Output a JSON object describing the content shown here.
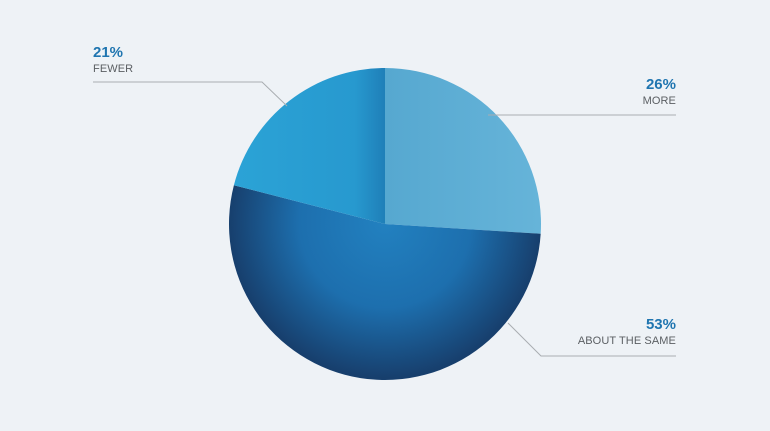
{
  "chart_data": {
    "type": "pie",
    "title": "",
    "legend": "none",
    "slices": [
      {
        "name": "MORE",
        "label": "26%",
        "value": 26,
        "color": "#5fb0d5"
      },
      {
        "name": "ABOUT THE SAME",
        "label": "53%",
        "value": 53,
        "color": "#1e6aa4"
      },
      {
        "name": "FEWER",
        "label": "21%",
        "value": 21,
        "color": "#27a0d4"
      }
    ]
  }
}
